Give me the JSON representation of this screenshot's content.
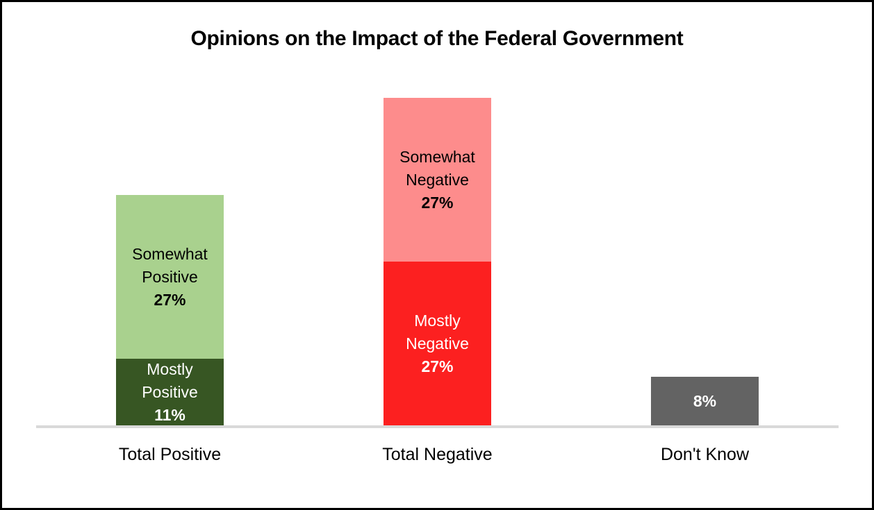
{
  "chart_data": {
    "type": "bar",
    "stacked": true,
    "title": "Opinions on the Impact of the Federal Government",
    "unit": "%",
    "gridlines": false,
    "legend": "none",
    "value_axis": {
      "visible": false,
      "min": 0,
      "max": 60
    },
    "baseline_color": "#D9D9D9",
    "categories": [
      "Total Positive",
      "Total Negative",
      "Don't Know"
    ],
    "bars": [
      {
        "category": "Total Positive",
        "segments": [
          {
            "label": "Mostly Positive",
            "label_lines": [
              "Mostly",
              "Positive"
            ],
            "value": 11,
            "value_label": "11%",
            "color": "#375623",
            "text_color": "#FFFFFF"
          },
          {
            "label": "Somewhat Positive",
            "label_lines": [
              "Somewhat",
              "Positive"
            ],
            "value": 27,
            "value_label": "27%",
            "color": "#A9D18E",
            "text_color": "#000000"
          }
        ]
      },
      {
        "category": "Total Negative",
        "segments": [
          {
            "label": "Mostly Negative",
            "label_lines": [
              "Mostly",
              "Negative"
            ],
            "value": 27,
            "value_label": "27%",
            "color": "#FC2020",
            "text_color": "#FFFFFF"
          },
          {
            "label": "Somewhat Negative",
            "label_lines": [
              "Somewhat",
              "Negative"
            ],
            "value": 27,
            "value_label": "27%",
            "color": "#FD8C8C",
            "text_color": "#000000"
          }
        ]
      },
      {
        "category": "Don't Know",
        "segments": [
          {
            "label": "Don't Know",
            "label_lines": [],
            "value": 8,
            "value_label": "8%",
            "color": "#636363",
            "text_color": "#FFFFFF"
          }
        ]
      }
    ]
  }
}
